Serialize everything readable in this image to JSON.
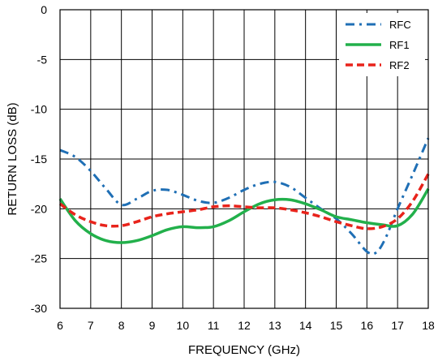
{
  "chart_data": {
    "type": "line",
    "xlabel": "FREQUENCY (GHz)",
    "ylabel": "RETURN LOSS (dB)",
    "xlim": [
      6,
      18
    ],
    "ylim": [
      -30,
      0
    ],
    "xticks": [
      6,
      7,
      8,
      9,
      10,
      11,
      12,
      13,
      14,
      15,
      16,
      17,
      18
    ],
    "yticks": [
      0,
      -5,
      -10,
      -15,
      -20,
      -25,
      -30
    ],
    "grid": true,
    "legend_position": "top-right",
    "series": [
      {
        "name": "RFC",
        "color": "#1f6fb5",
        "style": "dash-dot",
        "x": [
          6,
          6.5,
          7,
          7.5,
          8,
          8.5,
          9,
          9.5,
          10,
          10.5,
          11,
          11.5,
          12,
          12.5,
          13,
          13.5,
          14,
          14.5,
          15,
          15.5,
          16,
          16.3,
          16.6,
          17,
          17.5,
          18
        ],
        "y": [
          -14.1,
          -14.8,
          -16.2,
          -18.0,
          -19.6,
          -19.0,
          -18.2,
          -18.1,
          -18.6,
          -19.2,
          -19.4,
          -18.9,
          -18.1,
          -17.5,
          -17.3,
          -17.8,
          -18.9,
          -20.0,
          -21.0,
          -22.5,
          -24.3,
          -24.4,
          -23.0,
          -20.0,
          -16.5,
          -12.9
        ]
      },
      {
        "name": "RF1",
        "color": "#22b04b",
        "style": "solid",
        "x": [
          6,
          6.5,
          7,
          7.5,
          8,
          8.5,
          9,
          9.5,
          10,
          10.5,
          11,
          11.5,
          12,
          12.5,
          13,
          13.5,
          14,
          14.5,
          15,
          15.5,
          16,
          16.5,
          17,
          17.5,
          18
        ],
        "y": [
          -19.0,
          -21.2,
          -22.5,
          -23.2,
          -23.4,
          -23.2,
          -22.7,
          -22.1,
          -21.8,
          -21.9,
          -21.8,
          -21.2,
          -20.3,
          -19.5,
          -19.1,
          -19.1,
          -19.5,
          -20.1,
          -20.8,
          -21.1,
          -21.4,
          -21.6,
          -21.7,
          -20.5,
          -18.0
        ]
      },
      {
        "name": "RF2",
        "color": "#e8231b",
        "style": "dashed",
        "x": [
          6,
          6.5,
          7,
          7.5,
          8,
          8.5,
          9,
          9.5,
          10,
          10.5,
          11,
          11.5,
          12,
          12.5,
          13,
          13.5,
          14,
          14.5,
          15,
          15.5,
          16,
          16.5,
          17,
          17.5,
          18
        ],
        "y": [
          -19.5,
          -20.6,
          -21.3,
          -21.7,
          -21.7,
          -21.3,
          -20.8,
          -20.5,
          -20.3,
          -20.1,
          -19.8,
          -19.7,
          -19.8,
          -19.9,
          -19.9,
          -20.1,
          -20.4,
          -20.8,
          -21.3,
          -21.7,
          -22.0,
          -21.8,
          -21.0,
          -19.2,
          -16.5
        ]
      }
    ]
  }
}
